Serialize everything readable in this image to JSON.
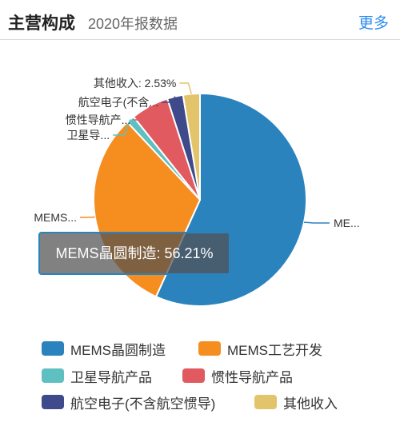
{
  "header": {
    "title": "主营构成",
    "subtitle": "2020年报数据",
    "more_label": "更多"
  },
  "tooltip": {
    "text": "MEMS晶圆制造: 56.21%"
  },
  "chart_data": {
    "type": "pie",
    "title": "主营构成",
    "subtitle": "2020年报数据",
    "slices": [
      {
        "name": "MEMS晶圆制造",
        "value": 56.21,
        "color": "#2b83bd",
        "label": "ME..."
      },
      {
        "name": "MEMS工艺开发",
        "value": 30.94,
        "color": "#f68d1f",
        "label": "MEMS..."
      },
      {
        "name": "卫星导航产品",
        "value": 1.22,
        "color": "#5fc0c2",
        "label": "卫星导..."
      },
      {
        "name": "惯性导航产品",
        "value": 5.71,
        "color": "#e05a5f",
        "label": "惯性导航产..."
      },
      {
        "name": "航空电子(不含航空惯导)",
        "value": 2.39,
        "color": "#3e4a8a",
        "label": "航空电子(不含..."
      },
      {
        "name": "其他收入",
        "value": 2.53,
        "color": "#e4c46a",
        "label": "其他收入: 2.53%"
      }
    ],
    "legend_position": "bottom"
  }
}
